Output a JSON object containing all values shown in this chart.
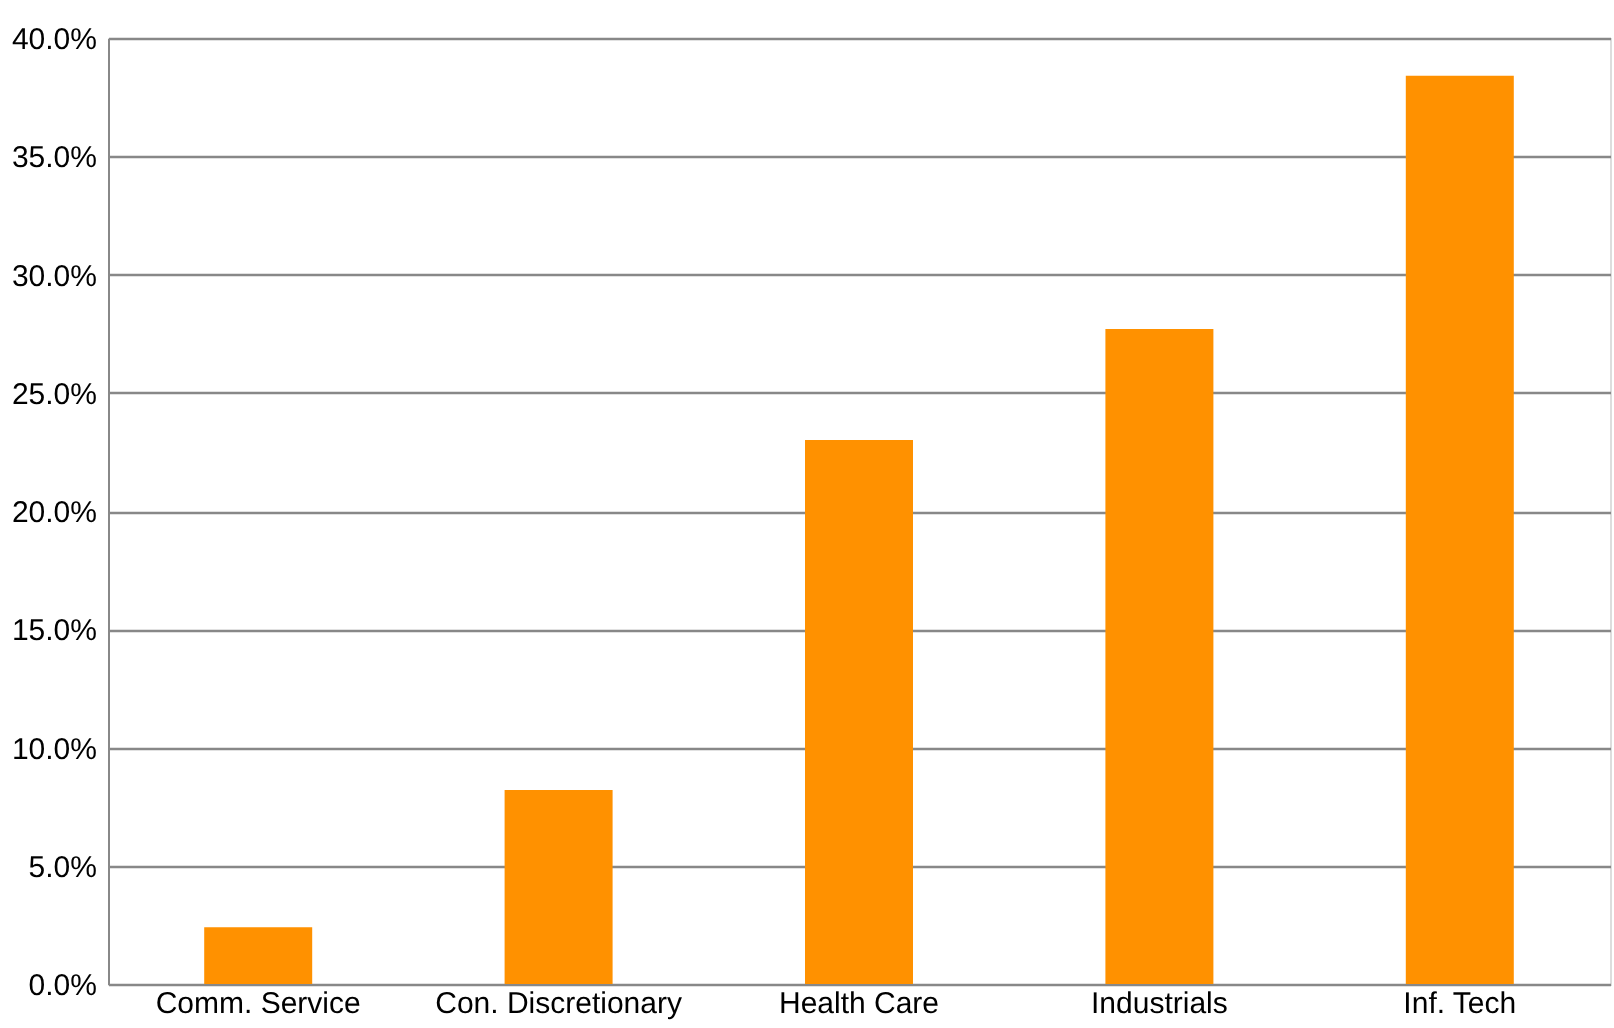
{
  "chart_data": {
    "type": "bar",
    "categories": [
      "Comm. Service",
      "Con. Discretionary",
      "Health Care",
      "Industrials",
      "Inf. Tech"
    ],
    "values": [
      2.4,
      8.2,
      23.0,
      27.7,
      38.4
    ],
    "color": "#ff9100",
    "ylim": [
      0,
      40
    ],
    "yticks": [
      {
        "value": 0,
        "label": "0.0%"
      },
      {
        "value": 5,
        "label": "5.0%"
      },
      {
        "value": 10,
        "label": "10.0%"
      },
      {
        "value": 15,
        "label": "15.0%"
      },
      {
        "value": 20,
        "label": "20.0%"
      },
      {
        "value": 25,
        "label": "25.0%"
      },
      {
        "value": 30,
        "label": "30.0%"
      },
      {
        "value": 35,
        "label": "35.0%"
      },
      {
        "value": 40,
        "label": "40.0%"
      }
    ],
    "grid": "y"
  }
}
